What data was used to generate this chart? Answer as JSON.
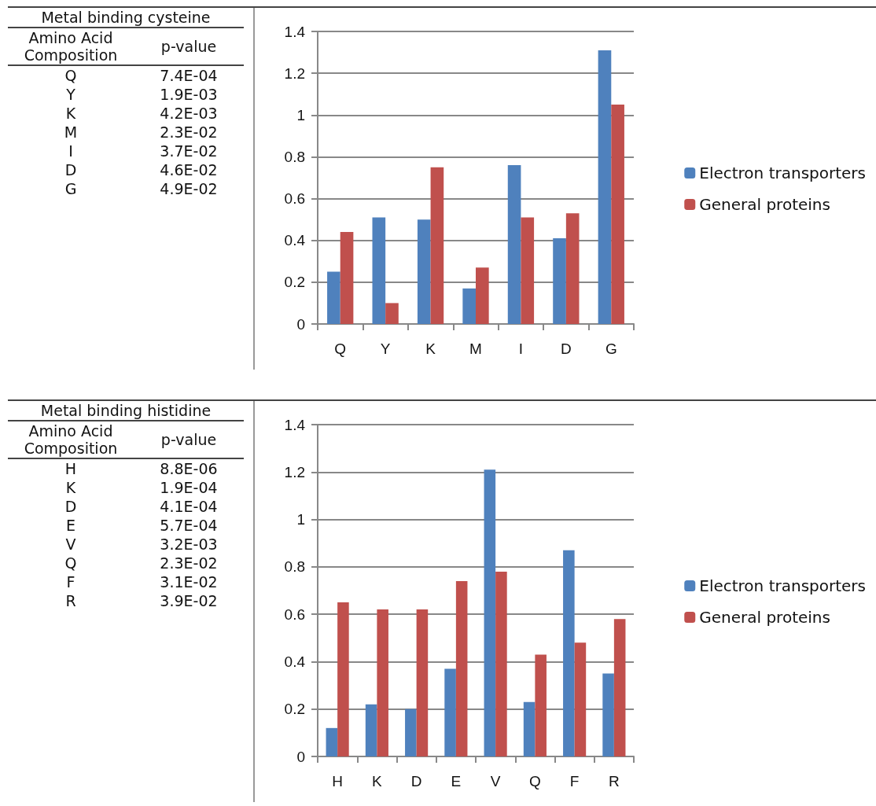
{
  "chart_data": [
    {
      "type": "other",
      "title": "Metal binding cysteine",
      "xlabel": "Amino Acid Composition",
      "ylabel": "p-value",
      "categories": [
        "Q",
        "Y",
        "K",
        "M",
        "I",
        "D",
        "G"
      ],
      "value_labels": [
        "7.4E-04",
        "1.9E-03",
        "4.2E-03",
        "2.3E-02",
        "3.7E-02",
        "4.6E-02",
        "4.9E-02"
      ]
    },
    {
      "type": "bar",
      "categories": [
        "Q",
        "Y",
        "K",
        "M",
        "I",
        "D",
        "G"
      ],
      "ylim": [
        0,
        1.4
      ],
      "yticks": [
        0,
        0.2,
        0.4,
        0.6,
        0.8,
        1,
        1.2,
        1.4
      ],
      "grid": "y",
      "legend": "right",
      "series": [
        {
          "name": "Electron transporters",
          "color": "#4f81bd",
          "values": [
            0.25,
            0.51,
            0.5,
            0.17,
            0.76,
            0.41,
            1.31
          ]
        },
        {
          "name": "General proteins",
          "color": "#c0504d",
          "values": [
            0.44,
            0.1,
            0.75,
            0.27,
            0.51,
            0.53,
            1.05
          ]
        }
      ]
    },
    {
      "type": "other",
      "title": "Metal binding histidine",
      "xlabel": "Amino Acid Composition",
      "ylabel": "p-value",
      "categories": [
        "H",
        "K",
        "D",
        "E",
        "V",
        "Q",
        "F",
        "R"
      ],
      "value_labels": [
        "8.8E-06",
        "1.9E-04",
        "4.1E-04",
        "5.7E-04",
        "3.2E-03",
        "2.3E-02",
        "3.1E-02",
        "3.9E-02"
      ]
    },
    {
      "type": "bar",
      "categories": [
        "H",
        "K",
        "D",
        "E",
        "V",
        "Q",
        "F",
        "R"
      ],
      "ylim": [
        0,
        1.4
      ],
      "yticks": [
        0,
        0.2,
        0.4,
        0.6,
        0.8,
        1,
        1.2,
        1.4
      ],
      "grid": "y",
      "legend": "right",
      "series": [
        {
          "name": "Electron transporters",
          "color": "#4f81bd",
          "values": [
            0.12,
            0.22,
            0.2,
            0.37,
            1.21,
            0.23,
            0.87,
            0.35
          ]
        },
        {
          "name": "General proteins",
          "color": "#c0504d",
          "values": [
            0.65,
            0.62,
            0.62,
            0.74,
            0.78,
            0.43,
            0.48,
            0.58
          ]
        }
      ]
    }
  ]
}
